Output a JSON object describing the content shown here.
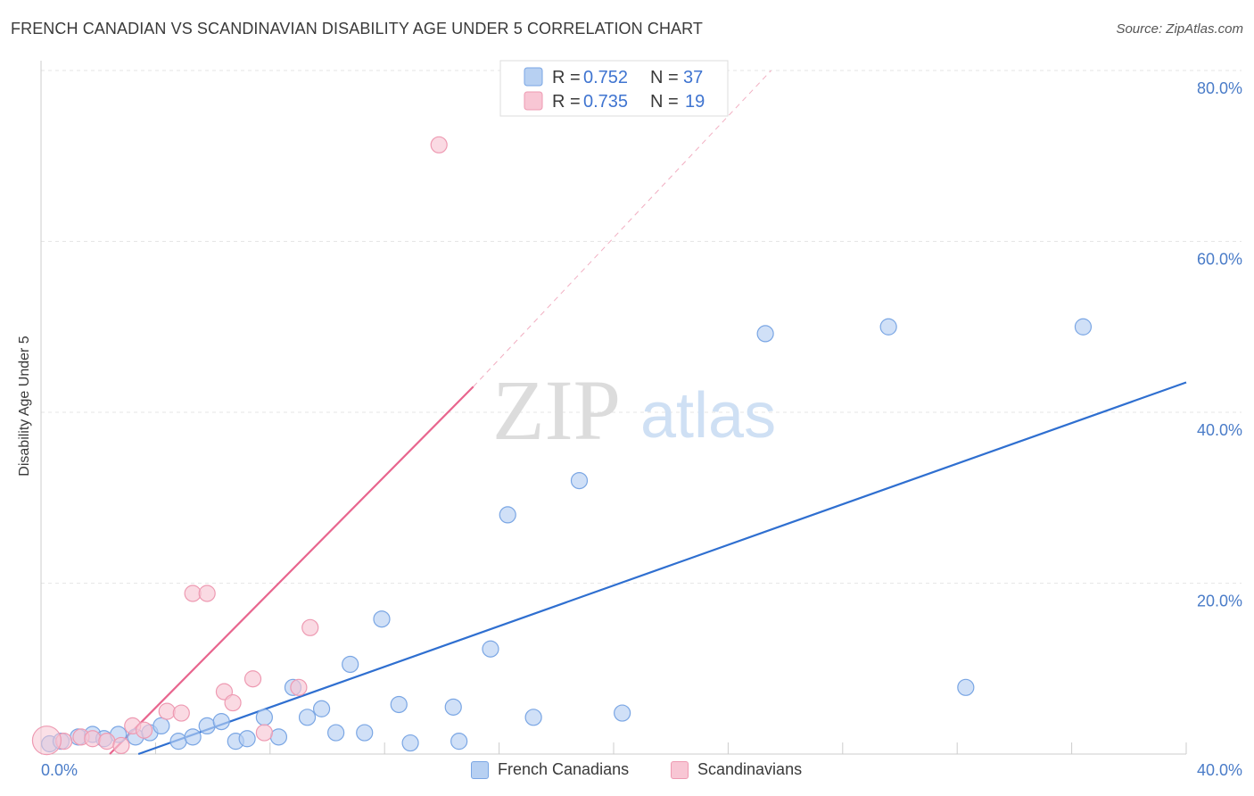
{
  "header": {
    "title": "FRENCH CANADIAN VS SCANDINAVIAN DISABILITY AGE UNDER 5 CORRELATION CHART",
    "source": "Source: ZipAtlas.com"
  },
  "watermark": {
    "zip": "ZIP",
    "atlas": "atlas"
  },
  "colors": {
    "blue_fill": "#b7d0f2",
    "blue_stroke": "#7aa6e4",
    "blue_line": "#2f6fd0",
    "pink_fill": "#f8c6d4",
    "pink_stroke": "#ee9ab2",
    "pink_line": "#e8658e",
    "accent_text": "#3f74d0"
  },
  "legend": {
    "rows": [
      {
        "r_label": "R =",
        "r_value": "0.752",
        "n_label": "N =",
        "n_value": "37"
      },
      {
        "r_label": "R =",
        "r_value": "0.735",
        "n_label": "N =",
        "n_value": "19"
      }
    ]
  },
  "bottom_legend": {
    "items": [
      "French Canadians",
      "Scandinavians"
    ]
  },
  "chart_data": {
    "type": "scatter",
    "title": "FRENCH CANADIAN VS SCANDINAVIAN DISABILITY AGE UNDER 5 CORRELATION CHART",
    "xlabel": "",
    "ylabel": "Disability Age Under 5",
    "xlim": [
      0,
      40
    ],
    "ylim": [
      0,
      80
    ],
    "x_tick_labels": [
      "0.0%",
      "40.0%"
    ],
    "y_ticks": [
      20,
      40,
      60,
      80
    ],
    "y_tick_labels": [
      "20.0%",
      "40.0%",
      "60.0%",
      "80.0%"
    ],
    "grid": true,
    "legend_position": "top-center",
    "series": [
      {
        "name": "French Canadians",
        "r": 0.752,
        "n": 37,
        "points": [
          [
            0.3,
            1.2
          ],
          [
            0.7,
            1.5
          ],
          [
            1.3,
            2.0
          ],
          [
            1.8,
            2.3
          ],
          [
            2.2,
            1.8
          ],
          [
            2.7,
            2.3
          ],
          [
            3.3,
            2.0
          ],
          [
            3.8,
            2.5
          ],
          [
            4.2,
            3.3
          ],
          [
            4.8,
            1.5
          ],
          [
            5.3,
            2.0
          ],
          [
            5.8,
            3.3
          ],
          [
            6.3,
            3.8
          ],
          [
            6.8,
            1.5
          ],
          [
            7.2,
            1.8
          ],
          [
            7.8,
            4.3
          ],
          [
            8.3,
            2.0
          ],
          [
            8.8,
            7.8
          ],
          [
            9.3,
            4.3
          ],
          [
            9.8,
            5.3
          ],
          [
            10.3,
            2.5
          ],
          [
            10.8,
            10.5
          ],
          [
            11.3,
            2.5
          ],
          [
            11.9,
            15.8
          ],
          [
            12.5,
            5.8
          ],
          [
            12.9,
            1.3
          ],
          [
            14.4,
            5.5
          ],
          [
            14.6,
            1.5
          ],
          [
            15.7,
            12.3
          ],
          [
            16.3,
            28.0
          ],
          [
            17.2,
            4.3
          ],
          [
            18.8,
            32.0
          ],
          [
            20.3,
            4.8
          ],
          [
            25.3,
            49.2
          ],
          [
            29.6,
            50.0
          ],
          [
            32.3,
            7.8
          ],
          [
            36.4,
            50.0
          ]
        ],
        "trend": {
          "x": [
            3.4,
            40.0
          ],
          "y": [
            0.0,
            43.5
          ]
        }
      },
      {
        "name": "Scandinavians",
        "r": 0.735,
        "n": 19,
        "points": [
          [
            0.8,
            1.5
          ],
          [
            1.4,
            2.0
          ],
          [
            1.8,
            1.8
          ],
          [
            2.3,
            1.5
          ],
          [
            2.8,
            1.0
          ],
          [
            3.2,
            3.3
          ],
          [
            3.6,
            2.8
          ],
          [
            4.4,
            5.0
          ],
          [
            4.9,
            4.8
          ],
          [
            5.3,
            18.8
          ],
          [
            5.8,
            18.8
          ],
          [
            6.4,
            7.3
          ],
          [
            6.7,
            6.0
          ],
          [
            7.4,
            8.8
          ],
          [
            7.8,
            2.5
          ],
          [
            9.0,
            7.8
          ],
          [
            9.4,
            14.8
          ],
          [
            13.9,
            71.3
          ],
          [
            0.2,
            1.6
          ]
        ],
        "trend": {
          "x": [
            2.4,
            15.1
          ],
          "y": [
            0.0,
            43.0
          ]
        },
        "trend_extension": {
          "x": [
            15.1,
            25.5
          ],
          "y": [
            43.0,
            80.0
          ]
        }
      }
    ]
  }
}
